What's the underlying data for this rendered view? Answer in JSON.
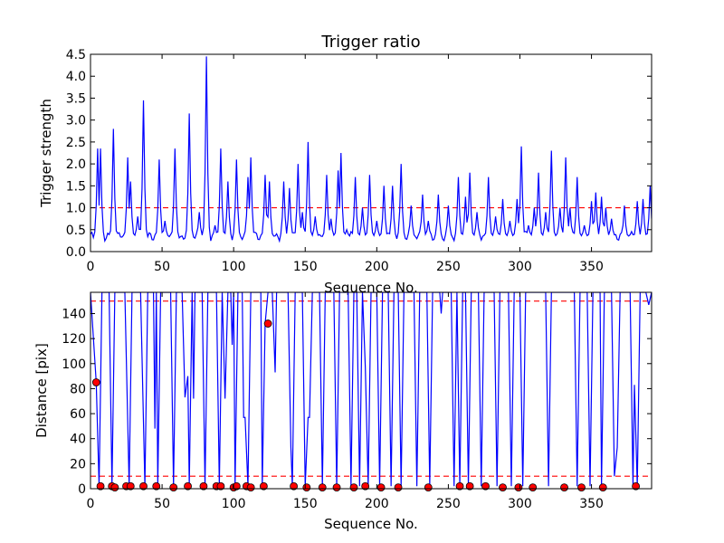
{
  "chart_data": [
    {
      "type": "line",
      "title": "Trigger ratio",
      "xlabel": "Sequence No.",
      "ylabel": "Trigger strength",
      "xlim": [
        0,
        392
      ],
      "ylim": [
        0,
        4.5
      ],
      "xticks": [
        0,
        50,
        100,
        150,
        200,
        250,
        300,
        350
      ],
      "xtick_labels": [
        "0",
        "50",
        "100",
        "150",
        "200",
        "250",
        "300",
        "350"
      ],
      "yticks": [
        0,
        0.5,
        1.0,
        1.5,
        2.0,
        2.5,
        3.0,
        3.5,
        4.0,
        4.5
      ],
      "ytick_labels": [
        "0.0",
        "0.5",
        "1.0",
        "1.5",
        "2.0",
        "2.5",
        "3.0",
        "3.5",
        "4.0",
        "4.5"
      ],
      "threshold": {
        "value": 1.0,
        "style": "dashed",
        "color": "#ff0000"
      },
      "series_color": "#0000ff",
      "base_level": 0.35,
      "peaks": [
        [
          5,
          2.35
        ],
        [
          7,
          2.35
        ],
        [
          16,
          2.8
        ],
        [
          26,
          2.15
        ],
        [
          28,
          1.6
        ],
        [
          33,
          0.8
        ],
        [
          37,
          3.45
        ],
        [
          48,
          2.1
        ],
        [
          52,
          0.7
        ],
        [
          59,
          2.35
        ],
        [
          69,
          3.15
        ],
        [
          76,
          0.9
        ],
        [
          81,
          4.45
        ],
        [
          87,
          0.6
        ],
        [
          91,
          2.35
        ],
        [
          96,
          1.6
        ],
        [
          102,
          2.1
        ],
        [
          110,
          1.7
        ],
        [
          112,
          2.15
        ],
        [
          122,
          1.75
        ],
        [
          125,
          1.6
        ],
        [
          135,
          1.6
        ],
        [
          139,
          1.45
        ],
        [
          145,
          2.0
        ],
        [
          148,
          0.9
        ],
        [
          152,
          2.5
        ],
        [
          157,
          0.8
        ],
        [
          165,
          1.75
        ],
        [
          168,
          0.75
        ],
        [
          173,
          1.85
        ],
        [
          175,
          2.25
        ],
        [
          179,
          0.5
        ],
        [
          185,
          1.7
        ],
        [
          190,
          1.0
        ],
        [
          195,
          1.75
        ],
        [
          200,
          0.7
        ],
        [
          205,
          1.5
        ],
        [
          211,
          1.5
        ],
        [
          217,
          2.0
        ],
        [
          224,
          1.05
        ],
        [
          232,
          1.3
        ],
        [
          236,
          0.7
        ],
        [
          243,
          1.3
        ],
        [
          250,
          1.05
        ],
        [
          257,
          1.7
        ],
        [
          262,
          1.25
        ],
        [
          265,
          1.8
        ],
        [
          270,
          0.9
        ],
        [
          278,
          1.7
        ],
        [
          283,
          0.8
        ],
        [
          288,
          1.2
        ],
        [
          293,
          0.7
        ],
        [
          298,
          1.2
        ],
        [
          301,
          2.4
        ],
        [
          306,
          0.6
        ],
        [
          310,
          1.0
        ],
        [
          313,
          1.8
        ],
        [
          318,
          0.9
        ],
        [
          322,
          2.3
        ],
        [
          328,
          1.0
        ],
        [
          332,
          2.15
        ],
        [
          335,
          1.0
        ],
        [
          340,
          1.7
        ],
        [
          345,
          0.6
        ],
        [
          350,
          1.15
        ],
        [
          353,
          1.35
        ],
        [
          357,
          1.25
        ],
        [
          360,
          1.0
        ],
        [
          364,
          0.75
        ],
        [
          373,
          1.05
        ],
        [
          378,
          0.45
        ],
        [
          382,
          1.15
        ],
        [
          386,
          1.2
        ],
        [
          391,
          1.5
        ]
      ]
    },
    {
      "type": "line+scatter",
      "title": "",
      "xlabel": "Sequence No.",
      "ylabel": "Distance [pix]",
      "xlim": [
        0,
        392
      ],
      "ylim": [
        0,
        157
      ],
      "xticks": [
        0,
        50,
        100,
        150,
        200,
        250,
        300,
        350
      ],
      "xtick_labels": [
        "0",
        "50",
        "100",
        "150",
        "200",
        "250",
        "300",
        "350"
      ],
      "yticks": [
        0,
        20,
        40,
        60,
        80,
        100,
        120,
        140
      ],
      "ytick_labels": [
        "0",
        "20",
        "40",
        "60",
        "80",
        "100",
        "120",
        "140"
      ],
      "thresholds": [
        {
          "value": 150,
          "style": "dashed",
          "color": "#ff0000"
        },
        {
          "value": 10,
          "style": "dashed",
          "color": "#ff0000"
        }
      ],
      "series_color": "#0000ff",
      "marker_color": "#ff0000",
      "line_segments": [
        [
          0,
          157
        ],
        [
          4,
          85
        ],
        [
          6,
          2
        ],
        [
          8,
          157
        ],
        [
          13,
          157
        ],
        [
          15,
          2
        ],
        [
          17,
          157
        ],
        [
          24,
          157
        ],
        [
          27,
          2
        ],
        [
          29,
          157
        ],
        [
          35,
          157
        ],
        [
          38,
          2
        ],
        [
          40,
          157
        ],
        [
          44,
          157
        ],
        [
          45,
          48
        ],
        [
          46,
          157
        ],
        [
          47,
          2
        ],
        [
          49,
          157
        ],
        [
          56,
          157
        ],
        [
          58,
          2
        ],
        [
          60,
          157
        ],
        [
          64,
          157
        ],
        [
          66,
          73
        ],
        [
          68,
          90
        ],
        [
          69,
          2
        ],
        [
          71,
          157
        ],
        [
          72,
          72
        ],
        [
          73,
          157
        ],
        [
          78,
          157
        ],
        [
          80,
          2
        ],
        [
          82,
          157
        ],
        [
          88,
          157
        ],
        [
          90,
          2
        ],
        [
          92,
          157
        ],
        [
          94,
          72
        ],
        [
          96,
          157
        ],
        [
          98,
          157
        ],
        [
          99,
          115
        ],
        [
          100,
          157
        ],
        [
          101,
          2
        ],
        [
          103,
          157
        ],
        [
          106,
          157
        ],
        [
          107,
          57
        ],
        [
          108,
          57
        ],
        [
          110,
          2
        ],
        [
          112,
          157
        ],
        [
          119,
          157
        ],
        [
          120,
          2
        ],
        [
          122,
          132
        ],
        [
          124,
          157
        ],
        [
          127,
          157
        ],
        [
          129,
          93
        ],
        [
          130,
          157
        ],
        [
          138,
          157
        ],
        [
          140,
          33
        ],
        [
          141,
          2
        ],
        [
          143,
          157
        ],
        [
          148,
          157
        ],
        [
          150,
          2
        ],
        [
          152,
          57
        ],
        [
          153,
          57
        ],
        [
          155,
          157
        ],
        [
          160,
          157
        ],
        [
          162,
          2
        ],
        [
          164,
          157
        ],
        [
          170,
          157
        ],
        [
          172,
          2
        ],
        [
          174,
          157
        ],
        [
          180,
          157
        ],
        [
          182,
          2
        ],
        [
          184,
          157
        ],
        [
          186,
          157
        ],
        [
          188,
          2
        ],
        [
          190,
          157
        ],
        [
          192,
          97
        ],
        [
          194,
          2
        ],
        [
          196,
          157
        ],
        [
          200,
          157
        ],
        [
          202,
          2
        ],
        [
          204,
          157
        ],
        [
          208,
          157
        ],
        [
          210,
          2
        ],
        [
          212,
          157
        ],
        [
          215,
          157
        ],
        [
          217,
          2
        ],
        [
          219,
          157
        ],
        [
          226,
          157
        ],
        [
          228,
          2
        ],
        [
          230,
          157
        ],
        [
          235,
          157
        ],
        [
          237,
          2
        ],
        [
          239,
          157
        ],
        [
          244,
          157
        ],
        [
          245,
          140
        ],
        [
          246,
          157
        ],
        [
          252,
          157
        ],
        [
          254,
          2
        ],
        [
          256,
          157
        ],
        [
          258,
          2
        ],
        [
          260,
          157
        ],
        [
          262,
          157
        ],
        [
          264,
          2
        ],
        [
          266,
          157
        ],
        [
          271,
          157
        ],
        [
          273,
          2
        ],
        [
          275,
          157
        ],
        [
          282,
          157
        ],
        [
          284,
          2
        ],
        [
          286,
          157
        ],
        [
          292,
          157
        ],
        [
          294,
          2
        ],
        [
          296,
          157
        ],
        [
          300,
          157
        ],
        [
          302,
          2
        ],
        [
          304,
          157
        ],
        [
          310,
          157
        ],
        [
          312,
          157
        ],
        [
          314,
          157
        ],
        [
          318,
          157
        ],
        [
          320,
          2
        ],
        [
          322,
          157
        ],
        [
          328,
          157
        ],
        [
          330,
          157
        ],
        [
          332,
          157
        ],
        [
          338,
          157
        ],
        [
          340,
          2
        ],
        [
          342,
          157
        ],
        [
          347,
          157
        ],
        [
          349,
          2
        ],
        [
          351,
          157
        ],
        [
          356,
          157
        ],
        [
          357,
          2
        ],
        [
          359,
          157
        ],
        [
          364,
          157
        ],
        [
          366,
          10
        ],
        [
          368,
          33
        ],
        [
          370,
          157
        ],
        [
          377,
          157
        ],
        [
          379,
          2
        ],
        [
          380,
          83
        ],
        [
          382,
          2
        ],
        [
          384,
          157
        ],
        [
          388,
          157
        ],
        [
          390,
          147
        ],
        [
          392,
          157
        ]
      ],
      "markers": [
        [
          4,
          85
        ],
        [
          7,
          2
        ],
        [
          15,
          2
        ],
        [
          17,
          1
        ],
        [
          25,
          2
        ],
        [
          28,
          2
        ],
        [
          37,
          2
        ],
        [
          46,
          2
        ],
        [
          58,
          1
        ],
        [
          68,
          2
        ],
        [
          79,
          2
        ],
        [
          88,
          2
        ],
        [
          91,
          2
        ],
        [
          100,
          1
        ],
        [
          102,
          2
        ],
        [
          109,
          2
        ],
        [
          112,
          1
        ],
        [
          121,
          2
        ],
        [
          124,
          132
        ],
        [
          142,
          2
        ],
        [
          151,
          1
        ],
        [
          162,
          1
        ],
        [
          172,
          1
        ],
        [
          184,
          1
        ],
        [
          192,
          2
        ],
        [
          203,
          1
        ],
        [
          215,
          1
        ],
        [
          236,
          1
        ],
        [
          258,
          2
        ],
        [
          265,
          2
        ],
        [
          276,
          2
        ],
        [
          288,
          1
        ],
        [
          299,
          1
        ],
        [
          309,
          1
        ],
        [
          331,
          1
        ],
        [
          343,
          1
        ],
        [
          358,
          1
        ],
        [
          381,
          2
        ]
      ]
    }
  ]
}
